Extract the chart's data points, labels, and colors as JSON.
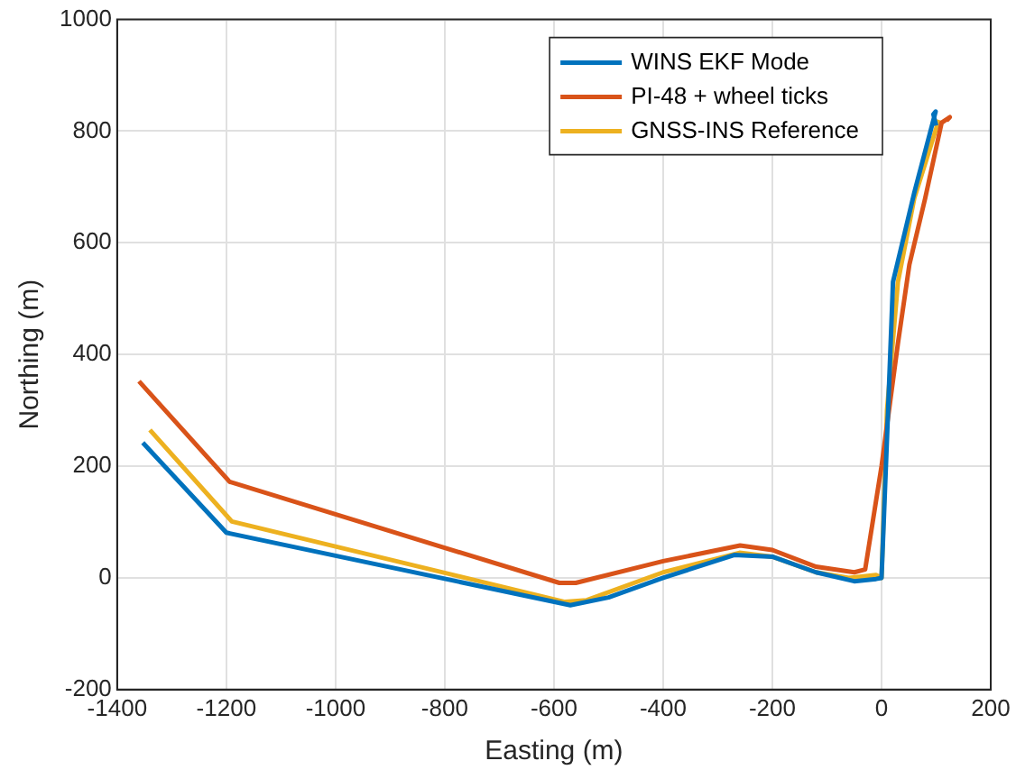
{
  "chart_data": {
    "type": "line",
    "xlabel": "Easting (m)",
    "ylabel": "Northing (m)",
    "xlim": [
      -1400,
      200
    ],
    "xticks": [
      -1400,
      -1200,
      -1000,
      -800,
      -600,
      -400,
      -200,
      0,
      200
    ],
    "ylim": [
      -200,
      1000
    ],
    "yticks": [
      -200,
      0,
      200,
      400,
      600,
      800,
      1000
    ],
    "grid": true,
    "legend": "top right",
    "marker": "none",
    "line_style": "solid",
    "series": [
      {
        "name": "WINS EKF Mode",
        "color": "#0072bd",
        "x": [
          -1353,
          -1200,
          -570,
          -500,
          -400,
          -270,
          -200,
          -120,
          -50,
          -10,
          0,
          10,
          21,
          60,
          99,
          95,
          100
        ],
        "values": [
          242,
          81,
          -49,
          -35,
          0,
          41,
          38,
          10,
          -6,
          -2,
          0,
          250,
          530,
          690,
          835,
          830,
          810
        ]
      },
      {
        "name": "PI-48 + wheel ticks",
        "color": "#d95319",
        "x": [
          -1360,
          -1194,
          -590,
          -560,
          -400,
          -259,
          -200,
          -120,
          -50,
          -30,
          0,
          30,
          51,
          80,
          110,
          125,
          119
        ],
        "values": [
          352,
          172,
          -9,
          -9,
          30,
          58,
          50,
          20,
          10,
          15,
          200,
          420,
          561,
          680,
          815,
          825,
          819
        ]
      },
      {
        "name": "GNSS-INS Reference",
        "color": "#edb120",
        "x": [
          -1340,
          -1190,
          -580,
          -540,
          -400,
          -260,
          -200,
          -120,
          -60,
          -10,
          0,
          10,
          30,
          60,
          105
        ],
        "values": [
          265,
          101,
          -43,
          -40,
          10,
          45,
          38,
          10,
          0,
          5,
          0,
          300,
          530,
          680,
          820
        ]
      }
    ]
  }
}
